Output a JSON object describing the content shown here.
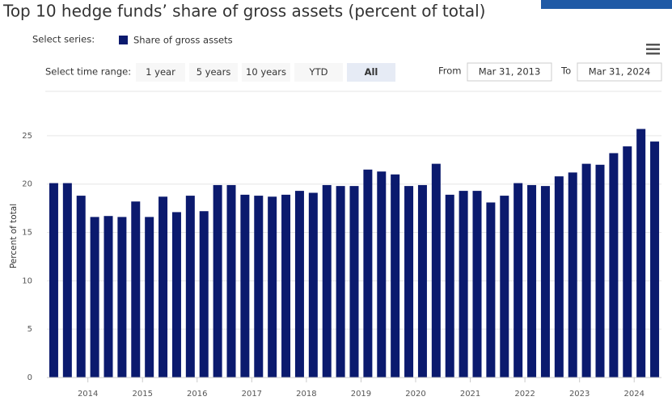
{
  "chart_data": {
    "type": "bar",
    "title": "Top 10 hedge funds’ share of gross assets (percent of total)",
    "series_selector_label": "Select series:",
    "range_selector_label": "Select time range:",
    "range_buttons": [
      "1 year",
      "5 years",
      "10 years",
      "YTD",
      "All"
    ],
    "from_label": "From",
    "from_value": "Mar 31, 2013",
    "to_label": "To",
    "to_value": "Mar 31, 2024",
    "ylabel": "Percent of total",
    "categories": [
      null,
      null,
      null,
      "2014",
      null,
      null,
      null,
      "2015",
      null,
      null,
      null,
      "2016",
      null,
      null,
      null,
      "2017",
      null,
      null,
      null,
      "2018",
      null,
      null,
      null,
      "2019",
      null,
      null,
      null,
      "2020",
      null,
      null,
      null,
      "2021",
      null,
      null,
      null,
      "2022",
      null,
      null,
      null,
      "2023",
      null,
      null,
      null,
      "2024",
      null
    ],
    "series": [
      {
        "name": "Share of gross assets",
        "color": "#0b1a6e",
        "values": [
          20.1,
          20.1,
          18.8,
          16.6,
          16.7,
          16.6,
          18.2,
          16.6,
          18.7,
          17.1,
          18.8,
          17.2,
          19.9,
          19.9,
          18.9,
          18.8,
          18.7,
          18.9,
          19.3,
          19.1,
          19.9,
          19.8,
          19.8,
          21.5,
          21.3,
          21.0,
          19.8,
          19.9,
          22.1,
          18.9,
          19.3,
          19.3,
          18.1,
          18.8,
          20.1,
          19.9,
          19.8,
          20.8,
          21.2,
          22.1,
          22.0,
          23.2,
          23.9,
          25.7,
          24.4
        ]
      }
    ],
    "ylim": [
      0,
      27.5
    ],
    "yticks": [
      0,
      5,
      10,
      15,
      20,
      25
    ],
    "grid": true
  }
}
